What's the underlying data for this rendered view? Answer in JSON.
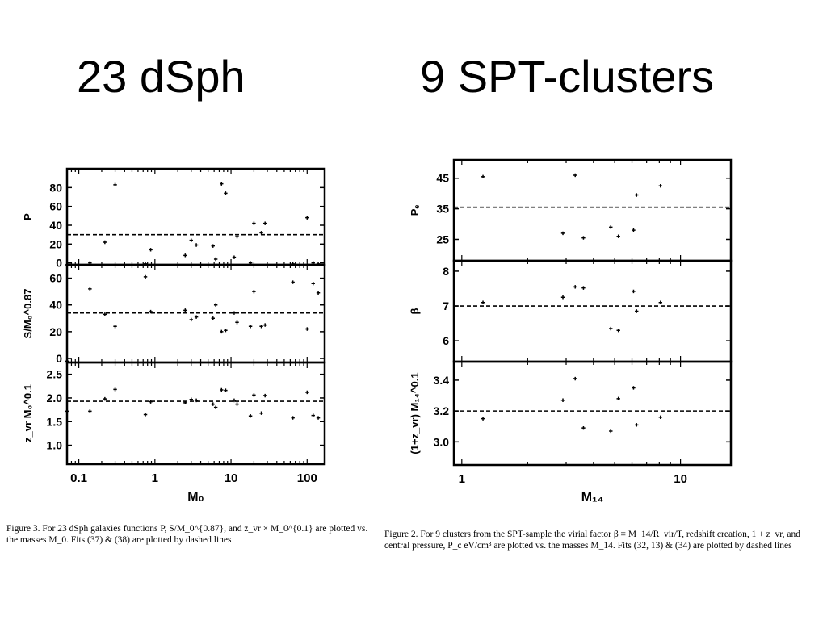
{
  "titles": {
    "left": "23 dSph",
    "right": "9 SPT-clusters"
  },
  "captions": {
    "left": "Figure 3. For 23 dSph galaxies functions P, S/M_0^{0.87}, and z_vr × M_0^{0.1} are plotted vs. the masses M_0. Fits (37) & (38) are plotted by dashed lines",
    "right": "Figure 2. For 9 clusters from the SPT-sample the virial factor β ≡ M_14/R_vir/T, redshift creation, 1 + z_vr, and central pressure, P_c eV/cm³ are plotted vs. the masses M_14. Fits (32, 13) & (34) are plotted by dashed lines"
  },
  "chart_data": [
    {
      "type": "scatter",
      "panel": "dsph",
      "xscale": "log",
      "xlim": [
        0.07,
        170
      ],
      "xticks": [
        0.1,
        1,
        10,
        100
      ],
      "xticklabels": [
        "0.1",
        "1",
        "10",
        "100"
      ],
      "xlabel": "M₀",
      "x": [
        0.07,
        0.14,
        0.22,
        0.3,
        0.75,
        0.88,
        2.5,
        3.0,
        3.5,
        5.8,
        6.3,
        7.5,
        8.5,
        11,
        12,
        18,
        20,
        25,
        28,
        65,
        100,
        120,
        140
      ],
      "subplots": [
        {
          "ylabel": "P",
          "ylim": [
            -2,
            100
          ],
          "yticks": [
            0,
            20,
            40,
            60,
            80
          ],
          "yticklabels": [
            "0",
            "20",
            "40",
            "60",
            "80"
          ],
          "fit": 30,
          "y": [
            -2,
            0,
            22,
            83,
            -1,
            14,
            8,
            24,
            19,
            18,
            4,
            84,
            74,
            6,
            28,
            0,
            42,
            32,
            42,
            -1,
            48,
            0,
            -1
          ]
        },
        {
          "ylabel": "S/M₀^0.87",
          "ylim": [
            -3,
            70
          ],
          "yticks": [
            0,
            20,
            40,
            60
          ],
          "yticklabels": [
            "0",
            "20",
            "40",
            "60"
          ],
          "fit": 34,
          "y": [
            -2,
            52,
            33,
            24,
            61,
            35,
            36,
            29,
            31,
            30,
            40,
            20,
            21,
            34,
            27,
            24,
            50,
            24,
            25,
            57,
            22,
            56,
            49
          ]
        },
        {
          "ylabel": "z_vr M₀^0.1",
          "ylim": [
            0.6,
            2.75
          ],
          "yticks": [
            1.0,
            1.5,
            2.0,
            2.5
          ],
          "yticklabels": [
            "1.0",
            "1.5",
            "2.0",
            "2.5"
          ],
          "fit": 1.93,
          "y": [
            1.72,
            1.72,
            1.98,
            2.18,
            1.65,
            1.92,
            1.9,
            1.97,
            1.95,
            1.87,
            1.8,
            2.17,
            2.16,
            1.95,
            1.87,
            1.62,
            2.06,
            1.68,
            2.05,
            1.58,
            2.12,
            1.63,
            1.58
          ]
        }
      ]
    },
    {
      "type": "scatter",
      "panel": "spt",
      "xscale": "log",
      "xlim": [
        0.92,
        17
      ],
      "xticks": [
        1,
        10
      ],
      "xticklabels": [
        "1",
        "10"
      ],
      "xlabel": "M₁₄",
      "x": [
        1.25,
        2.9,
        3.3,
        3.6,
        4.8,
        5.2,
        6.1,
        6.3,
        8.1
      ],
      "subplots": [
        {
          "ylabel": "Pₑ",
          "ylim": [
            18,
            51
          ],
          "yticks": [
            25,
            35,
            45
          ],
          "yticklabels": [
            "25",
            "35",
            "45"
          ],
          "fit": 35.5,
          "y": [
            45.5,
            27.0,
            46.0,
            25.5,
            29.0,
            26.0,
            28.0,
            39.5,
            42.5
          ]
        },
        {
          "ylabel": "β",
          "ylim": [
            5.4,
            8.3
          ],
          "yticks": [
            6,
            7,
            8
          ],
          "yticklabels": [
            "6",
            "7",
            "8"
          ],
          "fit": 7.0,
          "y": [
            7.1,
            7.25,
            7.55,
            7.52,
            6.35,
            6.3,
            7.42,
            6.85,
            7.1
          ]
        },
        {
          "ylabel": "(1+z_vr) M₁₄^0.1",
          "ylim": [
            2.85,
            3.52
          ],
          "yticks": [
            3.0,
            3.2,
            3.4
          ],
          "yticklabels": [
            "3.0",
            "3.2",
            "3.4"
          ],
          "fit": 3.2,
          "y": [
            3.15,
            3.27,
            3.41,
            3.09,
            3.07,
            3.28,
            3.35,
            3.11,
            3.16
          ]
        }
      ]
    }
  ]
}
